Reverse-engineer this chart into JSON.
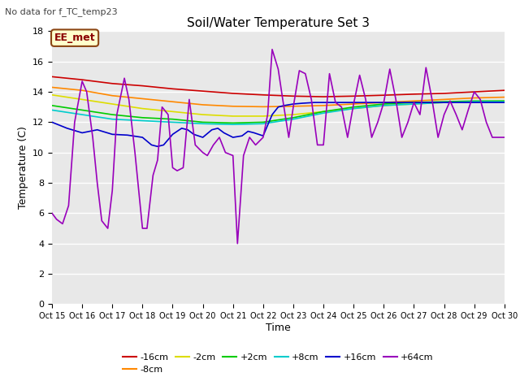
{
  "title": "Soil/Water Temperature Set 3",
  "subtitle": "No data for f_TC_temp23",
  "xlabel": "Time",
  "ylabel": "Temperature (C)",
  "xlim": [
    0,
    15
  ],
  "ylim": [
    0,
    18
  ],
  "yticks": [
    0,
    2,
    4,
    6,
    8,
    10,
    12,
    14,
    16,
    18
  ],
  "xtick_labels": [
    "Oct 15",
    "Oct 16",
    "Oct 17",
    "Oct 18",
    "Oct 19",
    "Oct 20",
    "Oct 21",
    "Oct 22",
    "Oct 23",
    "Oct 24",
    "Oct 25",
    "Oct 26",
    "Oct 27",
    "Oct 28",
    "Oct 29",
    "Oct 30"
  ],
  "annotation": "EE_met",
  "fig_bg_color": "#ffffff",
  "plot_bg_color": "#e8e8e8",
  "series_order": [
    "-16cm",
    "-8cm",
    "-2cm",
    "+2cm",
    "+8cm",
    "+16cm",
    "+64cm"
  ],
  "series": {
    "-16cm": {
      "color": "#cc0000",
      "x": [
        0,
        1,
        2,
        3,
        4,
        5,
        6,
        7,
        8,
        9,
        10,
        11,
        12,
        13,
        14,
        15
      ],
      "y": [
        15.0,
        14.8,
        14.55,
        14.4,
        14.2,
        14.05,
        13.9,
        13.8,
        13.72,
        13.68,
        13.72,
        13.78,
        13.85,
        13.9,
        14.0,
        14.1
      ]
    },
    "-8cm": {
      "color": "#ff8800",
      "x": [
        0,
        1,
        2,
        3,
        4,
        5,
        6,
        7,
        8,
        9,
        10,
        11,
        12,
        13,
        14,
        15
      ],
      "y": [
        14.3,
        14.1,
        13.75,
        13.55,
        13.35,
        13.15,
        13.05,
        13.02,
        13.05,
        13.1,
        13.2,
        13.3,
        13.4,
        13.5,
        13.6,
        13.65
      ]
    },
    "-2cm": {
      "color": "#dddd00",
      "x": [
        0,
        1,
        2,
        3,
        4,
        5,
        6,
        7,
        8,
        9,
        10,
        11,
        12,
        13,
        14,
        15
      ],
      "y": [
        13.8,
        13.5,
        13.2,
        12.9,
        12.7,
        12.5,
        12.4,
        12.4,
        12.5,
        12.7,
        12.9,
        13.1,
        13.2,
        13.3,
        13.35,
        13.4
      ]
    },
    "+2cm": {
      "color": "#00cc00",
      "x": [
        0,
        1,
        2,
        3,
        4,
        5,
        6,
        7,
        8,
        9,
        10,
        11,
        12,
        13,
        14,
        15
      ],
      "y": [
        13.1,
        12.8,
        12.5,
        12.3,
        12.2,
        12.0,
        11.95,
        12.0,
        12.3,
        12.7,
        13.0,
        13.2,
        13.3,
        13.35,
        13.4,
        13.4
      ]
    },
    "+8cm": {
      "color": "#00cccc",
      "x": [
        0,
        1,
        2,
        3,
        4,
        5,
        6,
        7,
        8,
        9,
        10,
        11,
        12,
        13,
        14,
        15
      ],
      "y": [
        12.8,
        12.5,
        12.2,
        12.1,
        12.0,
        11.9,
        11.85,
        11.9,
        12.2,
        12.6,
        12.9,
        13.1,
        13.2,
        13.3,
        13.35,
        13.35
      ]
    },
    "+16cm": {
      "color": "#0000cc",
      "x": [
        0,
        0.5,
        1.0,
        1.5,
        2.0,
        2.5,
        3.0,
        3.3,
        3.5,
        3.7,
        4.0,
        4.3,
        4.5,
        4.7,
        5.0,
        5.3,
        5.5,
        5.7,
        6.0,
        6.3,
        6.5,
        6.7,
        7.0,
        7.3,
        7.5,
        7.7,
        8.0,
        8.3,
        8.7,
        9.0,
        9.5,
        10.0,
        10.5,
        11.0,
        11.5,
        12.0,
        12.5,
        13.0,
        13.5,
        14.0,
        14.5,
        15.0
      ],
      "y": [
        12.0,
        11.6,
        11.3,
        11.5,
        11.2,
        11.15,
        11.0,
        10.5,
        10.4,
        10.5,
        11.2,
        11.6,
        11.5,
        11.2,
        11.0,
        11.5,
        11.6,
        11.3,
        11.0,
        11.1,
        11.4,
        11.3,
        11.1,
        12.5,
        13.0,
        13.1,
        13.2,
        13.25,
        13.3,
        13.3,
        13.3,
        13.3,
        13.3,
        13.3,
        13.3,
        13.3,
        13.3,
        13.3,
        13.3,
        13.3,
        13.3,
        13.3
      ]
    },
    "+64cm": {
      "color": "#9900bb",
      "x": [
        0,
        0.15,
        0.35,
        0.55,
        0.75,
        1.0,
        1.15,
        1.35,
        1.5,
        1.65,
        1.85,
        2.0,
        2.15,
        2.4,
        2.55,
        2.75,
        3.0,
        3.15,
        3.35,
        3.5,
        3.65,
        3.85,
        4.0,
        4.15,
        4.35,
        4.55,
        4.75,
        5.0,
        5.15,
        5.35,
        5.55,
        5.75,
        6.0,
        6.15,
        6.35,
        6.55,
        6.75,
        7.0,
        7.15,
        7.3,
        7.5,
        7.65,
        7.85,
        8.0,
        8.2,
        8.4,
        8.6,
        8.8,
        9.0,
        9.2,
        9.4,
        9.6,
        9.8,
        10.0,
        10.2,
        10.4,
        10.6,
        10.8,
        11.0,
        11.2,
        11.4,
        11.6,
        11.8,
        12.0,
        12.2,
        12.4,
        12.6,
        12.8,
        13.0,
        13.2,
        13.4,
        13.6,
        13.8,
        14.0,
        14.2,
        14.4,
        14.6,
        14.8,
        15.0
      ],
      "y": [
        6.0,
        5.6,
        5.3,
        6.5,
        12.0,
        14.7,
        14.0,
        11.0,
        8.0,
        5.5,
        5.0,
        7.5,
        12.5,
        14.9,
        13.5,
        10.0,
        5.0,
        5.0,
        8.5,
        9.5,
        13.0,
        12.5,
        9.0,
        8.8,
        9.0,
        13.5,
        10.5,
        10.0,
        9.8,
        10.5,
        11.0,
        10.0,
        9.8,
        4.0,
        9.8,
        11.0,
        10.5,
        11.0,
        12.5,
        16.8,
        15.5,
        13.5,
        11.0,
        13.0,
        15.4,
        15.2,
        13.5,
        10.5,
        10.5,
        15.2,
        13.3,
        13.0,
        11.0,
        13.2,
        15.1,
        13.5,
        11.0,
        12.0,
        13.3,
        15.5,
        13.5,
        11.0,
        12.0,
        13.3,
        12.5,
        15.6,
        13.5,
        11.0,
        12.5,
        13.4,
        12.5,
        11.5,
        12.8,
        14.0,
        13.5,
        12.0,
        11.0,
        11.0,
        11.0
      ]
    }
  }
}
